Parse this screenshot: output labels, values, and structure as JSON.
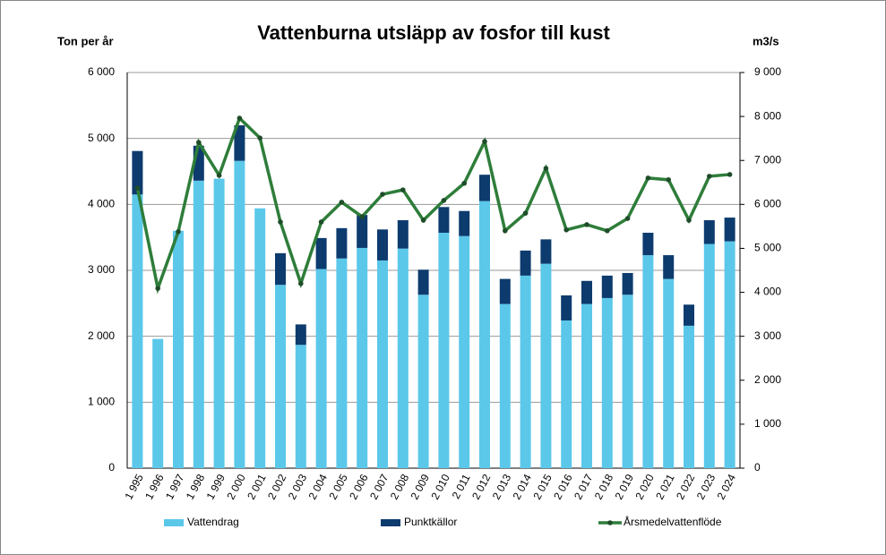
{
  "chart_data": {
    "type": "bar",
    "title": "Vattenburna utsläpp av fosfor till kust",
    "y_label": "Ton per år",
    "y2_label": "m3/s",
    "categories": [
      "1 995",
      "1 996",
      "1 997",
      "1 998",
      "1 999",
      "2 000",
      "2 001",
      "2 002",
      "2 003",
      "2 004",
      "2 005",
      "2 006",
      "2 007",
      "2 008",
      "2 009",
      "2 010",
      "2 011",
      "2 012",
      "2 013",
      "2 014",
      "2 015",
      "2 016",
      "2 017",
      "2 018",
      "2 019",
      "2 020",
      "2 021",
      "2 022",
      "2 023",
      "2 024"
    ],
    "stacked": true,
    "grid": true,
    "legend": "bottom",
    "series": [
      {
        "name": "Vattendrag",
        "color": "#5bc8ea",
        "type": "bar",
        "values": [
          4150,
          1960,
          3600,
          4360,
          4390,
          4660,
          3940,
          2780,
          1870,
          3020,
          3180,
          3340,
          3150,
          3330,
          2630,
          3570,
          3520,
          4050,
          2490,
          2920,
          3100,
          2240,
          2490,
          2580,
          2630,
          3230,
          2870,
          2160,
          3400,
          3440
        ]
      },
      {
        "name": "Punktkällor",
        "color": "#0d3b6e",
        "type": "bar",
        "values": [
          660,
          0,
          0,
          530,
          0,
          540,
          0,
          480,
          310,
          470,
          460,
          500,
          470,
          430,
          380,
          390,
          380,
          400,
          380,
          380,
          370,
          380,
          350,
          340,
          330,
          340,
          360,
          320,
          360,
          360
        ]
      },
      {
        "name": "Årsmedelvattenflöde",
        "color": "#2e7d3a",
        "type": "line",
        "axis": "y2",
        "values": [
          6370,
          4090,
          5380,
          7410,
          6660,
          7960,
          7510,
          5600,
          4200,
          5600,
          6050,
          5720,
          6230,
          6330,
          5640,
          6090,
          6480,
          7430,
          5400,
          5800,
          6820,
          5420,
          5540,
          5400,
          5680,
          6600,
          6560,
          5640,
          6640,
          6680
        ]
      }
    ],
    "ylim": [
      0,
      6000
    ],
    "yticks": [
      0,
      {
        "value": 1000,
        "label": "1 000"
      },
      {
        "value": 2000,
        "label": "2 000"
      },
      {
        "value": 3000,
        "label": "3 000"
      },
      {
        "value": 4000,
        "label": "4 000"
      },
      {
        "value": 5000,
        "label": "5 000"
      },
      {
        "value": 6000,
        "label": "6 000"
      }
    ],
    "y2lim": [
      0,
      9000
    ],
    "y2ticks": [
      0,
      {
        "value": 1000,
        "label": "1 000"
      },
      {
        "value": 2000,
        "label": "2 000"
      },
      {
        "value": 3000,
        "label": "3 000"
      },
      {
        "value": 4000,
        "label": "4 000"
      },
      {
        "value": 5000,
        "label": "5 000"
      },
      {
        "value": 6000,
        "label": "6 000"
      },
      {
        "value": 7000,
        "label": "7 000"
      },
      {
        "value": 8000,
        "label": "8 000"
      },
      {
        "value": 9000,
        "label": "9 000"
      }
    ]
  }
}
